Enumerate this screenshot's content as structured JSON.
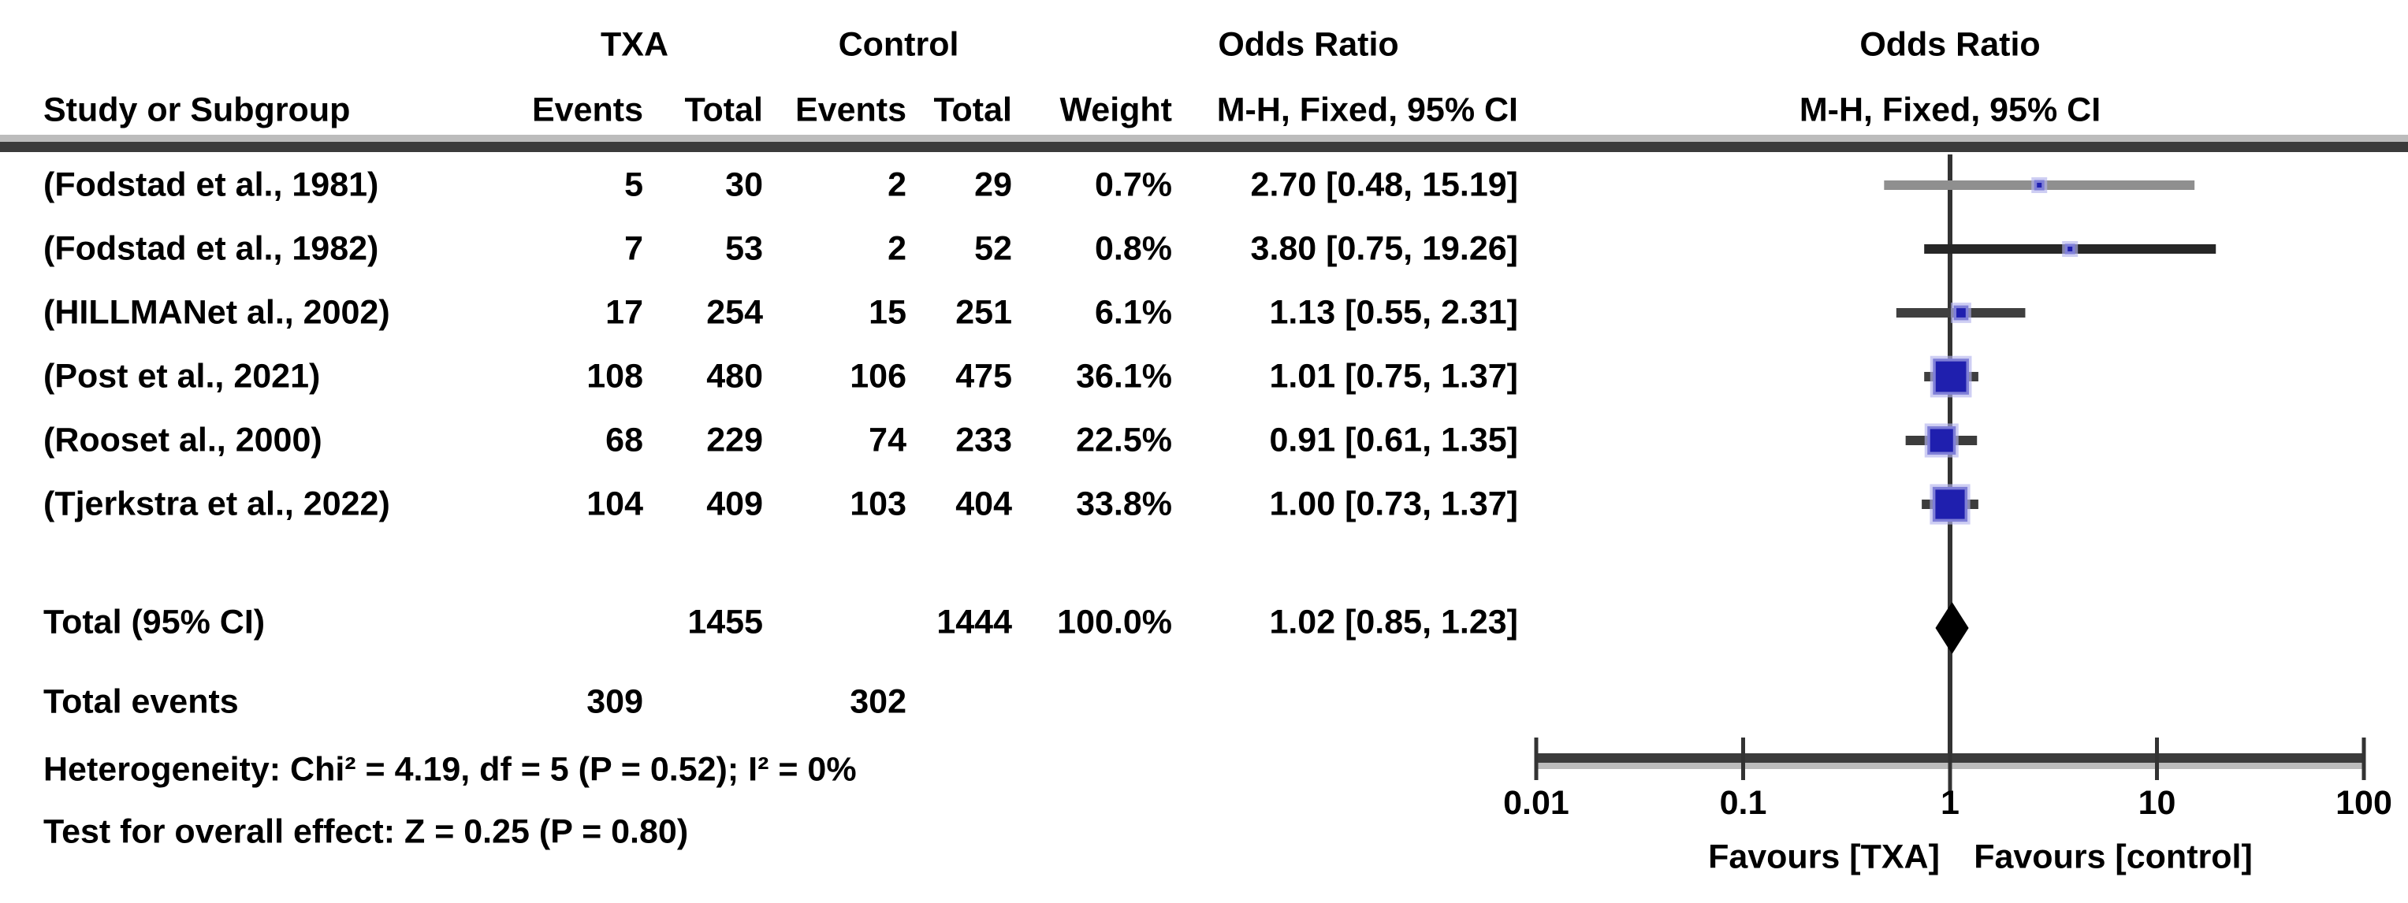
{
  "table": {
    "group_headers": {
      "txa": "TXA",
      "control": "Control",
      "odds_ratio_left": "Odds Ratio",
      "odds_ratio_right": "Odds Ratio"
    },
    "column_headers": {
      "study": "Study or Subgroup",
      "txa_events": "Events",
      "txa_total": "Total",
      "control_events": "Events",
      "control_total": "Total",
      "weight": "Weight",
      "mh_ci_left": "M-H, Fixed, 95% CI",
      "mh_ci_right": "M-H, Fixed, 95% CI"
    },
    "rows": [
      {
        "study": "(Fodstad et al., 1981)",
        "txa_events": "5",
        "txa_total": "30",
        "control_events": "2",
        "control_total": "29",
        "weight": "0.7%",
        "or_ci": "2.70 [0.48, 15.19]"
      },
      {
        "study": "(Fodstad et al., 1982)",
        "txa_events": "7",
        "txa_total": "53",
        "control_events": "2",
        "control_total": "52",
        "weight": "0.8%",
        "or_ci": "3.80 [0.75, 19.26]"
      },
      {
        "study": "(HILLMANet al., 2002)",
        "txa_events": "17",
        "txa_total": "254",
        "control_events": "15",
        "control_total": "251",
        "weight": "6.1%",
        "or_ci": "1.13 [0.55, 2.31]"
      },
      {
        "study": "(Post et al., 2021)",
        "txa_events": "108",
        "txa_total": "480",
        "control_events": "106",
        "control_total": "475",
        "weight": "36.1%",
        "or_ci": "1.01 [0.75, 1.37]"
      },
      {
        "study": "(Rooset al., 2000)",
        "txa_events": "68",
        "txa_total": "229",
        "control_events": "74",
        "control_total": "233",
        "weight": "22.5%",
        "or_ci": "0.91 [0.61, 1.35]"
      },
      {
        "study": "(Tjerkstra et al., 2022)",
        "txa_events": "104",
        "txa_total": "409",
        "control_events": "103",
        "control_total": "404",
        "weight": "33.8%",
        "or_ci": "1.00 [0.73, 1.37]"
      }
    ],
    "total_row": {
      "label": "Total (95% CI)",
      "txa_total": "1455",
      "control_total": "1444",
      "weight": "100.0%",
      "or_ci": "1.02 [0.85, 1.23]"
    },
    "total_events_row": {
      "label": "Total events",
      "txa": "309",
      "control": "302"
    },
    "heterogeneity": "Heterogeneity: Chi² = 4.19, df = 5 (P = 0.52); I² = 0%",
    "overall_effect": "Test for overall effect: Z = 0.25 (P = 0.80)"
  },
  "plot": {
    "favours_left": "Favours [TXA]",
    "favours_right": "Favours [control]",
    "colors": {
      "marker": "#1f1fae",
      "marker_halo": "#b3b3ec",
      "diamond": "#000000",
      "reference_line": "#333333",
      "axis_dark": "#3b3b3b",
      "axis_light": "#bcbcbc",
      "ci_rows": [
        "#8f8f8f",
        "#262626",
        "#3f3f3f",
        "#3f3f3f",
        "#3c3c3c",
        "#3c3c3c"
      ]
    }
  },
  "chart_data": {
    "type": "scatter",
    "subtype": "forest_plot_meta_analysis",
    "effect_measure": "Odds Ratio",
    "method": "M-H, Fixed, 95% CI",
    "x_scale": "log",
    "x_ticks": [
      0.01,
      0.1,
      1,
      10,
      100
    ],
    "x_range": [
      0.01,
      100
    ],
    "reference_line_x": 1,
    "grid": false,
    "legend_position": "none",
    "favours": [
      "Favours [TXA]",
      "Favours [control]"
    ],
    "studies": [
      {
        "name": "(Fodstad et al., 1981)",
        "txa_events": 5,
        "txa_total": 30,
        "control_events": 2,
        "control_total": 29,
        "weight_pct": 0.7,
        "or": 2.7,
        "ci_low": 0.48,
        "ci_high": 15.19
      },
      {
        "name": "(Fodstad et al., 1982)",
        "txa_events": 7,
        "txa_total": 53,
        "control_events": 2,
        "control_total": 52,
        "weight_pct": 0.8,
        "or": 3.8,
        "ci_low": 0.75,
        "ci_high": 19.26
      },
      {
        "name": "(HILLMANet al., 2002)",
        "txa_events": 17,
        "txa_total": 254,
        "control_events": 15,
        "control_total": 251,
        "weight_pct": 6.1,
        "or": 1.13,
        "ci_low": 0.55,
        "ci_high": 2.31
      },
      {
        "name": "(Post et al., 2021)",
        "txa_events": 108,
        "txa_total": 480,
        "control_events": 106,
        "control_total": 475,
        "weight_pct": 36.1,
        "or": 1.01,
        "ci_low": 0.75,
        "ci_high": 1.37
      },
      {
        "name": "(Rooset al., 2000)",
        "txa_events": 68,
        "txa_total": 229,
        "control_events": 74,
        "control_total": 233,
        "weight_pct": 22.5,
        "or": 0.91,
        "ci_low": 0.61,
        "ci_high": 1.35
      },
      {
        "name": "(Tjerkstra et al., 2022)",
        "txa_events": 104,
        "txa_total": 409,
        "control_events": 103,
        "control_total": 404,
        "weight_pct": 33.8,
        "or": 1.0,
        "ci_low": 0.73,
        "ci_high": 1.37
      }
    ],
    "total": {
      "label": "Total (95% CI)",
      "txa_total": 1455,
      "control_total": 1444,
      "txa_events": 309,
      "control_events": 302,
      "weight_pct": 100.0,
      "or": 1.02,
      "ci_low": 0.85,
      "ci_high": 1.23
    },
    "heterogeneity": "Chi² = 4.19, df = 5 (P = 0.52); I² = 0%",
    "overall_effect_test": "Z = 0.25 (P = 0.80)"
  }
}
